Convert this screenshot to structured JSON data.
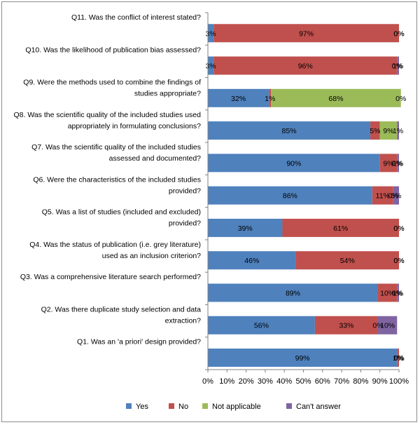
{
  "chart_data": {
    "type": "bar",
    "orientation": "horizontal",
    "stacked": true,
    "normalized": true,
    "categories": [
      "Q11. Was the conflict of interest stated?",
      "Q10. Was the likelihood of publication bias assessed?",
      "Q9. Were the methods used to combine the findings of studies appropriate?",
      "Q8. Was the scientific quality of the included studies used appropriately in formulating conclusions?",
      "Q7. Was the scientific quality of the included studies assessed and documented?",
      "Q6. Were the characteristics of the included studies provided?",
      "Q5. Was a list of studies (included and excluded) provided?",
      "Q4. Was the status of publication (i.e. grey literature) used as an inclusion criterion?",
      "Q3. Was a comprehensive literature search performed?",
      "Q2. Was there duplicate study selection and data extraction?",
      "Q1. Was an 'a priori' design provided?"
    ],
    "category_lines": [
      [
        "Q11. Was the conflict of interest stated?"
      ],
      [
        "Q10. Was the likelihood of publication bias assessed?"
      ],
      [
        "Q9. Were the methods used to combine the findings of",
        "studies appropriate?"
      ],
      [
        "Q8. Was the scientific quality of the included studies used",
        "appropriately in formulating conclusions?"
      ],
      [
        "Q7. Was the scientific quality of the included studies",
        "assessed and documented?"
      ],
      [
        "Q6. Were the characteristics of the included studies",
        "provided?"
      ],
      [
        "Q5. Was a list of studies (included and excluded)",
        "provided?"
      ],
      [
        "Q4. Was the status of publication (i.e. grey literature)",
        "used as an inclusion criterion?"
      ],
      [
        "Q3. Was a comprehensive literature search performed?"
      ],
      [
        "Q2. Was there duplicate study selection and data",
        "extraction?"
      ],
      [
        "Q1. Was an 'a priori' design provided?"
      ]
    ],
    "series": [
      {
        "name": "Yes",
        "color": "#4f81bd",
        "values": [
          3,
          3,
          32,
          85,
          90,
          86,
          39,
          46,
          89,
          56,
          99
        ]
      },
      {
        "name": "No",
        "color": "#c0504d",
        "values": [
          97,
          96,
          1,
          5,
          9,
          11,
          61,
          54,
          10,
          33,
          1
        ]
      },
      {
        "name": "Not applicable",
        "color": "#9bbb59",
        "values": [
          0,
          0,
          68,
          9,
          0,
          0,
          0,
          0,
          0,
          0,
          0
        ]
      },
      {
        "name": "Can't answer",
        "color": "#8064a2",
        "values": [
          0,
          1,
          0,
          1,
          1,
          3,
          0,
          0,
          1,
          10,
          0
        ]
      }
    ],
    "data_labels": [
      [
        "3%",
        "97%",
        "0%",
        "0%"
      ],
      [
        "3%",
        "96%",
        "0%",
        "1%"
      ],
      [
        "32%",
        "1%",
        "68%",
        "0%"
      ],
      [
        "85%",
        "5%",
        "9%",
        "1%"
      ],
      [
        "90%",
        "9%",
        "0%",
        "1%"
      ],
      [
        "86%",
        "11%",
        "0%",
        "3%"
      ],
      [
        "39%",
        "61%",
        "0%",
        "0%"
      ],
      [
        "46%",
        "54%",
        "0%",
        "0%"
      ],
      [
        "89%",
        "10%",
        "0%",
        "1%"
      ],
      [
        "56%",
        "33%",
        "0%",
        "10%"
      ],
      [
        "99%",
        "1%",
        "0%",
        "0%"
      ]
    ],
    "x_ticks": [
      "0%",
      "10%",
      "20%",
      "30%",
      "40%",
      "50%",
      "60%",
      "70%",
      "80%",
      "90%",
      "100%"
    ],
    "xlim": [
      0,
      100
    ],
    "grid": false,
    "legend_position": "bottom",
    "title": "",
    "xlabel": "",
    "ylabel": ""
  }
}
